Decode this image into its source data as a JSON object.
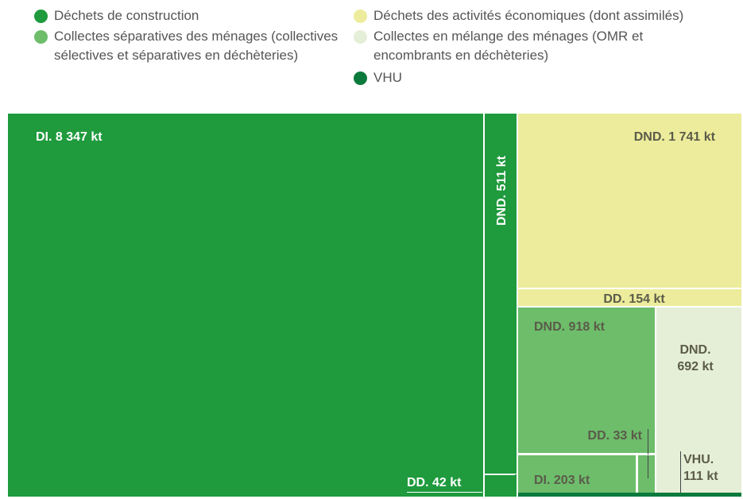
{
  "chart_data": {
    "type": "treemap",
    "series": [
      {
        "name": "Déchets de construction",
        "color": "#1f9a3d",
        "values": [
          8347,
          511,
          42
        ],
        "value_labels": [
          "DI. 8 347 kt",
          "DND. 511 kt",
          "DD. 42 kt"
        ]
      },
      {
        "name": "Déchets des activités économiques (dont assimilés)",
        "color": "#ecec9c",
        "values": [
          1741,
          154
        ],
        "value_labels": [
          "DND. 1 741 kt",
          "DD. 154 kt"
        ]
      },
      {
        "name": "Collectes séparatives des ménages (collectives sélectives et séparatives en déchèteries)",
        "color": "#6dbd6b",
        "values": [
          918,
          33,
          203
        ],
        "value_labels": [
          "DND. 918 kt",
          "DD. 33 kt",
          "DI. 203 kt"
        ]
      },
      {
        "name": "Collectes en mélange des ménages (OMR et encombrants en déchèteries)",
        "color": "#e5efd7",
        "values": [
          692
        ],
        "value_labels": [
          "DND. 692 kt"
        ]
      },
      {
        "name": "VHU",
        "color": "#0b7a3c",
        "values": [
          111
        ],
        "value_labels": [
          "VHU. 111 kt"
        ]
      }
    ]
  }
}
